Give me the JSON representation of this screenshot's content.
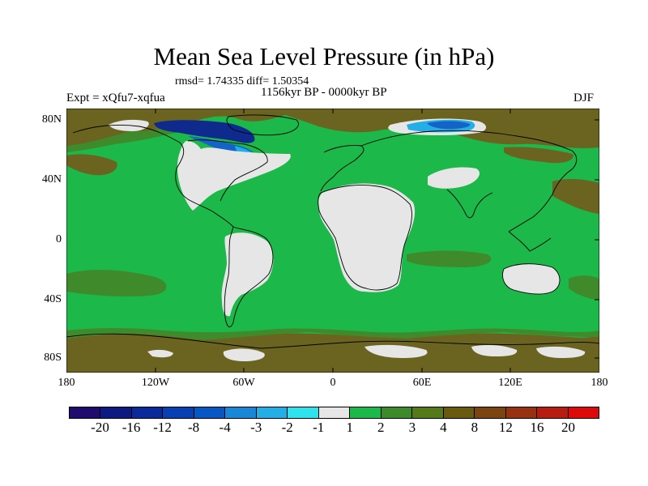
{
  "title": "Mean Sea Level Pressure (in hPa)",
  "stats": "rmsd= 1.74335 diff= 1.50354",
  "experiment": "Expt = xQfu7-xqfua",
  "period": "1156kyr BP - 0000kyr BP",
  "season": "DJF",
  "lat_ticks": [
    "80N",
    "40N",
    "0",
    "40S",
    "80S"
  ],
  "lon_ticks": [
    "180",
    "120W",
    "60W",
    "0",
    "60E",
    "120E",
    "180"
  ],
  "colorbar": {
    "colors": [
      "#1f0c6e",
      "#0c1a82",
      "#0a2a9c",
      "#0840b4",
      "#0656c4",
      "#1a86d6",
      "#24aee6",
      "#2ee2ee",
      "#e6e6e6",
      "#1db84a",
      "#3c8a2a",
      "#557a1a",
      "#6a5a10",
      "#7c4410",
      "#983012",
      "#b81c10",
      "#dc0a0a"
    ],
    "labels": [
      "-20",
      "-16",
      "-12",
      "-8",
      "-4",
      "-3",
      "-2",
      "-1",
      "1",
      "2",
      "3",
      "4",
      "8",
      "12",
      "16",
      "20"
    ]
  },
  "fill_colors": {
    "green": "#1db84a",
    "brown": "#6b6420",
    "olive": "#3f8a2b",
    "white": "#e6e6e6",
    "navy": "#0e2a8c",
    "blue": "#1464c8",
    "cyan": "#24aee6"
  }
}
